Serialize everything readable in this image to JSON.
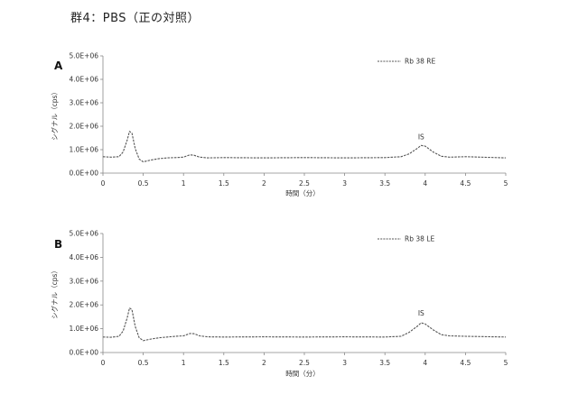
{
  "page": {
    "title": "群4：PBS（正の対照）"
  },
  "chart_data": [
    {
      "type": "line",
      "panel_label": "A",
      "xlabel": "時間（分）",
      "ylabel": "シグナル（cps）",
      "xlim": [
        0,
        5
      ],
      "ylim": [
        0,
        5000000
      ],
      "x_ticks": [
        "0",
        "0.5",
        "1",
        "1.5",
        "2",
        "2.5",
        "3",
        "3.5",
        "4",
        "4.5",
        "5"
      ],
      "y_ticks": [
        "0.0E+00",
        "1.0E+06",
        "2.0E+06",
        "3.0E+06",
        "4.0E+06",
        "5.0E+06"
      ],
      "legend": {
        "placement": "top-right",
        "label": "Rb 38 RE"
      },
      "annotations": [
        {
          "text": "IS",
          "x": 3.95,
          "y": 1450000
        }
      ],
      "series": [
        {
          "name": "Rb 38 RE",
          "color": "#555555",
          "x": [
            0.0,
            0.1,
            0.2,
            0.25,
            0.3,
            0.33,
            0.36,
            0.4,
            0.45,
            0.5,
            0.6,
            0.7,
            0.8,
            0.9,
            1.0,
            1.08,
            1.13,
            1.2,
            1.3,
            1.5,
            2.0,
            2.5,
            3.0,
            3.5,
            3.7,
            3.8,
            3.9,
            3.95,
            4.0,
            4.1,
            4.2,
            4.3,
            4.5,
            5.0
          ],
          "y": [
            700000,
            680000,
            700000,
            900000,
            1400000,
            1780000,
            1700000,
            1050000,
            600000,
            480000,
            560000,
            620000,
            650000,
            660000,
            680000,
            780000,
            760000,
            680000,
            650000,
            660000,
            650000,
            660000,
            650000,
            660000,
            700000,
            820000,
            1050000,
            1180000,
            1150000,
            900000,
            720000,
            680000,
            700000,
            650000
          ]
        }
      ]
    },
    {
      "type": "line",
      "panel_label": "B",
      "xlabel": "時間（分）",
      "ylabel": "シグナル（cps）",
      "xlim": [
        0,
        5
      ],
      "ylim": [
        0,
        5000000
      ],
      "x_ticks": [
        "0",
        "0.5",
        "1",
        "1.5",
        "2",
        "2.5",
        "3",
        "3.5",
        "4",
        "4.5",
        "5"
      ],
      "y_ticks": [
        "0.0E+00",
        "1.0E+06",
        "2.0E+06",
        "3.0E+06",
        "4.0E+06",
        "5.0E+06"
      ],
      "legend": {
        "placement": "top-right",
        "label": "Rb 38 LE"
      },
      "annotations": [
        {
          "text": "IS",
          "x": 3.95,
          "y": 1550000
        }
      ],
      "series": [
        {
          "name": "Rb 38 LE",
          "color": "#555555",
          "x": [
            0.0,
            0.1,
            0.2,
            0.25,
            0.3,
            0.33,
            0.36,
            0.4,
            0.45,
            0.5,
            0.6,
            0.7,
            0.8,
            0.9,
            1.0,
            1.08,
            1.13,
            1.2,
            1.3,
            1.5,
            2.0,
            2.5,
            3.0,
            3.5,
            3.7,
            3.8,
            3.9,
            3.95,
            4.0,
            4.1,
            4.2,
            4.3,
            4.5,
            5.0
          ],
          "y": [
            650000,
            640000,
            680000,
            900000,
            1450000,
            1870000,
            1800000,
            1100000,
            620000,
            500000,
            570000,
            620000,
            650000,
            680000,
            700000,
            800000,
            790000,
            700000,
            660000,
            650000,
            660000,
            650000,
            660000,
            650000,
            680000,
            850000,
            1100000,
            1250000,
            1200000,
            950000,
            750000,
            700000,
            680000,
            650000
          ]
        }
      ]
    }
  ]
}
